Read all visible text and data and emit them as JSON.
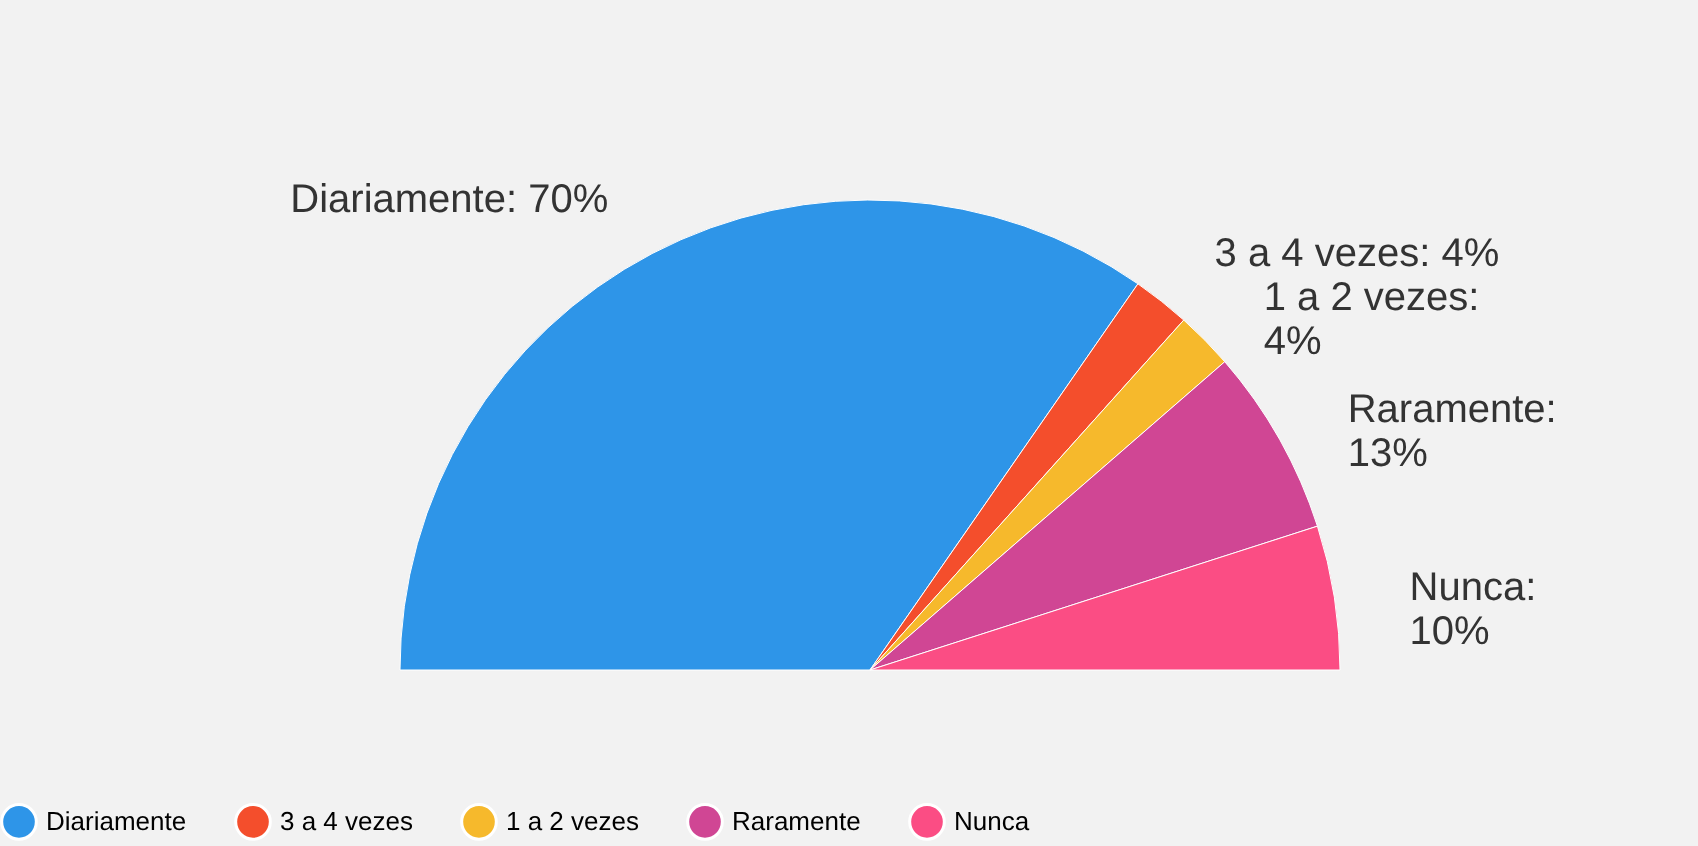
{
  "chart_data": {
    "type": "pie",
    "categories": [
      "Diariamente",
      "3 a 4 vezes",
      "1 a 2 vezes",
      "Raramente",
      "Nunca"
    ],
    "values": [
      70,
      4,
      4,
      13,
      10
    ],
    "colors": [
      "#2e95e8",
      "#f44e2c",
      "#f6b92c",
      "#d04694",
      "#fb4d84"
    ],
    "value_labels": [
      "Diariamente: 70%",
      "3 a 4 vezes: 4%",
      "1 a 2 vezes:\n4%",
      "Raramente:\n13%",
      "Nunca:\n10%"
    ],
    "legend": "bottom"
  }
}
